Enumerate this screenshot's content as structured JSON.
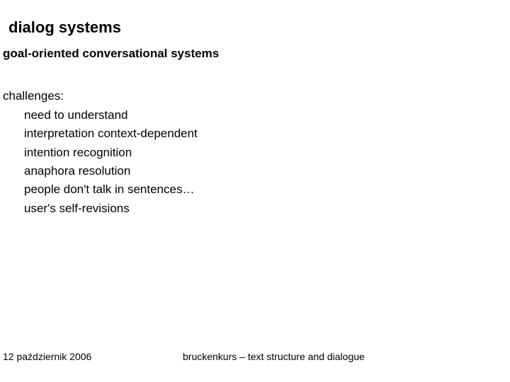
{
  "title": "dialog systems",
  "subtitle": "goal-oriented conversational systems",
  "section_label": "challenges:",
  "bullets": [
    "need to understand",
    "interpretation context-dependent",
    "intention recognition",
    "anaphora resolution",
    "people don't talk in sentences…",
    "user's self-revisions"
  ],
  "footer": {
    "date": "12 październik 2006",
    "course": "bruckenkurs – text structure and dialogue"
  },
  "style": {
    "background_color": "#ffffff",
    "text_color": "#000000",
    "title_fontsize": 22,
    "subtitle_fontsize": 17,
    "body_fontsize": 17,
    "footer_fontsize": 14,
    "font_family": "Arial"
  }
}
